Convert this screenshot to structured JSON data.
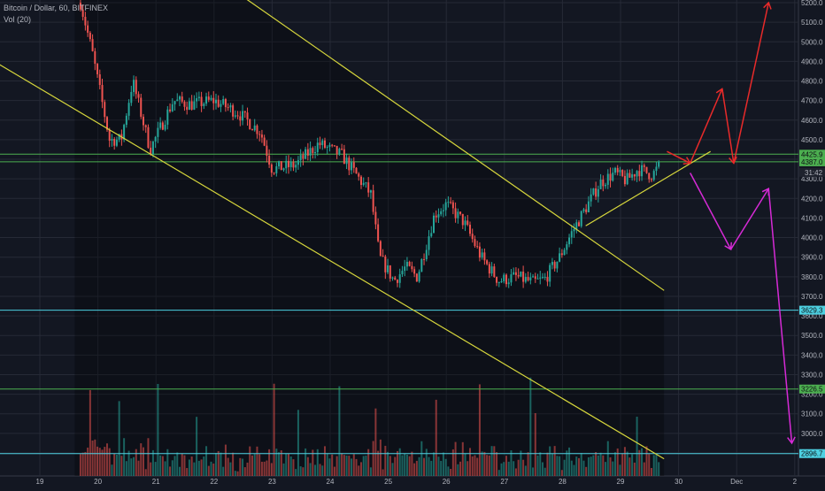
{
  "header": {
    "title": "Bitcoin / Dollar, 60, BITFINEX",
    "indicator": "Vol (20)"
  },
  "colors": {
    "background": "#131722",
    "grid": "#262a36",
    "up": "#26a69a",
    "down": "#ef5350",
    "channel": "#d6d63c",
    "cyan_level": "#4dd0e1",
    "green_level": "#4caf50",
    "arrow_red": "#e82a2a",
    "arrow_magenta": "#d62ad6",
    "axis_text": "#b2b5be"
  },
  "chart_data": {
    "type": "candlestick",
    "title": "Bitcoin / Dollar, 60, BITFINEX",
    "y_axis": {
      "ticks": [
        "5200.0",
        "5100.0",
        "5000.0",
        "4900.0",
        "4800.0",
        "4700.0",
        "4600.0",
        "4500.0",
        "4400.0",
        "4300.0",
        "4200.0",
        "4100.0",
        "4000.0",
        "3900.0",
        "3800.0",
        "3700.0",
        "3600.0",
        "3500.0",
        "3400.0",
        "3300.0",
        "3200.0",
        "3100.0",
        "3000.0",
        "2900.0"
      ],
      "range": [
        2840,
        5230
      ]
    },
    "x_axis": {
      "ticks": [
        "19",
        "20",
        "21",
        "22",
        "23",
        "24",
        "25",
        "26",
        "27",
        "28",
        "29",
        "30",
        "Dec",
        "2"
      ]
    },
    "price_key_points": [
      {
        "x": 19.7,
        "y": 5200
      },
      {
        "x": 19.9,
        "y": 4950
      },
      {
        "x": 20.2,
        "y": 4500
      },
      {
        "x": 20.4,
        "y": 4500
      },
      {
        "x": 20.6,
        "y": 4800
      },
      {
        "x": 20.9,
        "y": 4450
      },
      {
        "x": 21.3,
        "y": 4700
      },
      {
        "x": 21.6,
        "y": 4680
      },
      {
        "x": 22.0,
        "y": 4700
      },
      {
        "x": 22.4,
        "y": 4640
      },
      {
        "x": 22.8,
        "y": 4540
      },
      {
        "x": 23.0,
        "y": 4350
      },
      {
        "x": 23.4,
        "y": 4370
      },
      {
        "x": 23.8,
        "y": 4480
      },
      {
        "x": 24.2,
        "y": 4420
      },
      {
        "x": 24.5,
        "y": 4300
      },
      {
        "x": 24.7,
        "y": 4220
      },
      {
        "x": 24.85,
        "y": 3900
      },
      {
        "x": 25.1,
        "y": 3780
      },
      {
        "x": 25.3,
        "y": 3850
      },
      {
        "x": 25.5,
        "y": 3800
      },
      {
        "x": 25.8,
        "y": 4120
      },
      {
        "x": 26.0,
        "y": 4170
      },
      {
        "x": 26.3,
        "y": 4080
      },
      {
        "x": 26.6,
        "y": 3900
      },
      {
        "x": 26.9,
        "y": 3780
      },
      {
        "x": 27.2,
        "y": 3800
      },
      {
        "x": 27.5,
        "y": 3770
      },
      {
        "x": 27.7,
        "y": 3790
      },
      {
        "x": 27.95,
        "y": 3900
      },
      {
        "x": 28.15,
        "y": 4020
      },
      {
        "x": 28.4,
        "y": 4150
      },
      {
        "x": 28.65,
        "y": 4280
      },
      {
        "x": 28.9,
        "y": 4330
      },
      {
        "x": 29.1,
        "y": 4290
      },
      {
        "x": 29.3,
        "y": 4350
      },
      {
        "x": 29.55,
        "y": 4320
      },
      {
        "x": 29.7,
        "y": 4380
      }
    ],
    "horizontal_levels": [
      {
        "value": 4425.9,
        "label": "4425.9",
        "color": "#4caf50"
      },
      {
        "value": 4387.0,
        "label": "4387.0",
        "color": "#4caf50"
      },
      {
        "value": 3629.3,
        "label": "3629.3",
        "color": "#4dd0e1"
      },
      {
        "value": 3226.5,
        "label": "3226.5",
        "color": "#4caf50"
      },
      {
        "value": 2896.7,
        "label": "2896.7",
        "color": "#4dd0e1"
      }
    ],
    "countdown_label": "31:42",
    "trend_lines": [
      {
        "name": "channel-upper",
        "from": {
          "x": 22.5,
          "y": 5230
        },
        "to": {
          "x": 29.75,
          "y": 3730
        }
      },
      {
        "name": "channel-lower",
        "from": {
          "x": 18.1,
          "y": 4920
        },
        "to": {
          "x": 29.75,
          "y": 2870
        }
      },
      {
        "name": "rising-support",
        "from": {
          "x": 28.4,
          "y": 4060
        },
        "to": {
          "x": 30.55,
          "y": 4440
        }
      }
    ],
    "projections": [
      {
        "name": "bullish-path",
        "color": "#e82a2a",
        "points": [
          {
            "x": 29.8,
            "y": 4440
          },
          {
            "x": 30.2,
            "y": 4380
          },
          {
            "x": 30.75,
            "y": 4760
          },
          {
            "x": 30.95,
            "y": 4380
          },
          {
            "x": 31.55,
            "y": 5200
          }
        ]
      },
      {
        "name": "bearish-path",
        "color": "#d62ad6",
        "points": [
          {
            "x": 30.2,
            "y": 4330
          },
          {
            "x": 30.9,
            "y": 3940
          },
          {
            "x": 31.55,
            "y": 4250
          },
          {
            "x": 31.95,
            "y": 2950
          }
        ]
      }
    ]
  }
}
